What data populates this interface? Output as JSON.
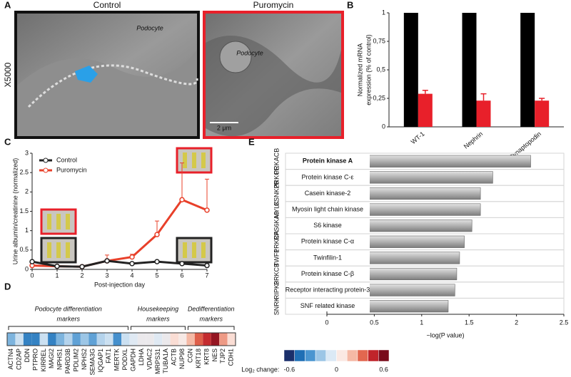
{
  "figure": {
    "panel_letters": [
      "A",
      "B",
      "C",
      "D",
      "E"
    ],
    "magnification": "X5000",
    "image_panels": [
      {
        "title": "Control",
        "label": "Podocyte"
      },
      {
        "title": "Puromycin",
        "label": "Podocyte",
        "scale": "2 μm"
      }
    ]
  },
  "chart_data": [
    {
      "type": "bar",
      "ylabel": [
        "Normalized mRNA",
        "expression (% of control)"
      ],
      "categories": [
        "WT-1",
        "Nephrin",
        "Synaptopodin"
      ],
      "series": [
        {
          "name": "Control",
          "color": "#000000",
          "values": [
            1,
            1,
            1
          ]
        },
        {
          "name": "Puromycin",
          "color": "#e8202a",
          "values": [
            0.29,
            0.23,
            0.23
          ],
          "errors": [
            0.03,
            0.06,
            0.02
          ]
        }
      ],
      "ylim": [
        0,
        1
      ],
      "yticks": [
        0,
        {
          "value": 0.25,
          "label": "0,25"
        },
        {
          "value": 0.5,
          "label": "0,5"
        },
        {
          "value": 0.75,
          "label": "0,75"
        },
        1
      ]
    },
    {
      "type": "line",
      "xlabel": "Post-injection day",
      "ylabel": "Urine albumin/creatinine (normalized)",
      "x": [
        0,
        1,
        2,
        3,
        4,
        5,
        6,
        7
      ],
      "series": [
        {
          "name": "Control",
          "color": "#222222",
          "values": [
            0.2,
            0.08,
            0.07,
            0.22,
            0.15,
            0.2,
            0.15,
            0.1
          ]
        },
        {
          "name": "Puromycin",
          "color": "#e8402a",
          "values": [
            0.1,
            0.08,
            0.07,
            0.22,
            0.32,
            0.9,
            1.8,
            1.53
          ],
          "errors": [
            0.02,
            0.02,
            0.02,
            0.15,
            0.07,
            0.35,
            0.95,
            0.8
          ]
        }
      ],
      "xlim": [
        0,
        7
      ],
      "xticks": [
        0,
        1,
        2,
        3,
        4,
        5,
        6,
        7
      ],
      "ylim": [
        0,
        3
      ],
      "yticks": [
        0,
        0.5,
        1,
        1.5,
        2,
        2.5,
        3
      ],
      "legend": "upper left"
    },
    {
      "type": "heatmap",
      "groups": [
        [
          "Podocyte differentiation",
          "markers"
        ],
        [
          "Housekeeping",
          "markers"
        ],
        [
          "Dedifferentiation",
          "markers"
        ]
      ],
      "categories": [
        "ACTN4",
        "CD2AP",
        "DDN",
        "PTPRO",
        "KIRREL",
        "MAGI2",
        "NPHS1",
        "PARD3B",
        "PDLIM2",
        "NPHS2",
        "SEMA3G",
        "IQGAP1",
        "FAT1",
        "MERTK",
        "PODXL",
        "GAPDH",
        "LDHA",
        "VDAC2",
        "MRPS31",
        "TUBA1A",
        "ACTB",
        "NUP98",
        "CGN",
        "KRT18",
        "KRT8",
        "NES",
        "TJP2",
        "CDH1"
      ],
      "values": [
        -0.25,
        -0.1,
        -0.4,
        -0.4,
        -0.1,
        -0.4,
        -0.25,
        -0.15,
        -0.3,
        -0.2,
        -0.3,
        -0.15,
        -0.1,
        -0.35,
        -0.1,
        -0.05,
        0,
        0,
        -0.05,
        0,
        0.1,
        0.05,
        0.2,
        0.35,
        0.45,
        0.55,
        0.25,
        0.1
      ],
      "colorbar_label": "Log₂ change:",
      "clim": [
        -0.6,
        0.6
      ],
      "cticks": [
        -0.6,
        0,
        0.6
      ],
      "colors": [
        "#1a2f6b",
        "#1f6fb5",
        "#4a95d0",
        "#9cc6e6",
        "#dbe9f5",
        "#fbe9e3",
        "#f5b9a5",
        "#e2674f",
        "#c0242a",
        "#7a0c1c"
      ]
    },
    {
      "type": "barh",
      "xlabel": "−log(P value)",
      "categories": [
        "Protein kinase A",
        "Protein kinase C-ε",
        "Casein kinase-2",
        "Myosin light chain kinase",
        "S6 kinase",
        "Protein kinase C-α",
        "Twinfilin-1",
        "Protein kinase C-β",
        "Receptor interacting protein-3",
        "SNF related kinase"
      ],
      "genes": [
        "PRKACB",
        "PRKCE",
        "CSNK2B",
        "MYLK",
        "RPS6KA3",
        "PRKCA",
        "TWF1",
        "PRKCB",
        "RIPK3",
        "SNRK"
      ],
      "values": [
        2.15,
        1.75,
        1.62,
        1.62,
        1.53,
        1.45,
        1.4,
        1.37,
        1.35,
        1.28
      ],
      "color": "#a9a9a9",
      "xlim": [
        0,
        2.5
      ],
      "xticks": [
        0,
        0.5,
        1,
        1.5,
        2,
        2.5
      ]
    }
  ]
}
